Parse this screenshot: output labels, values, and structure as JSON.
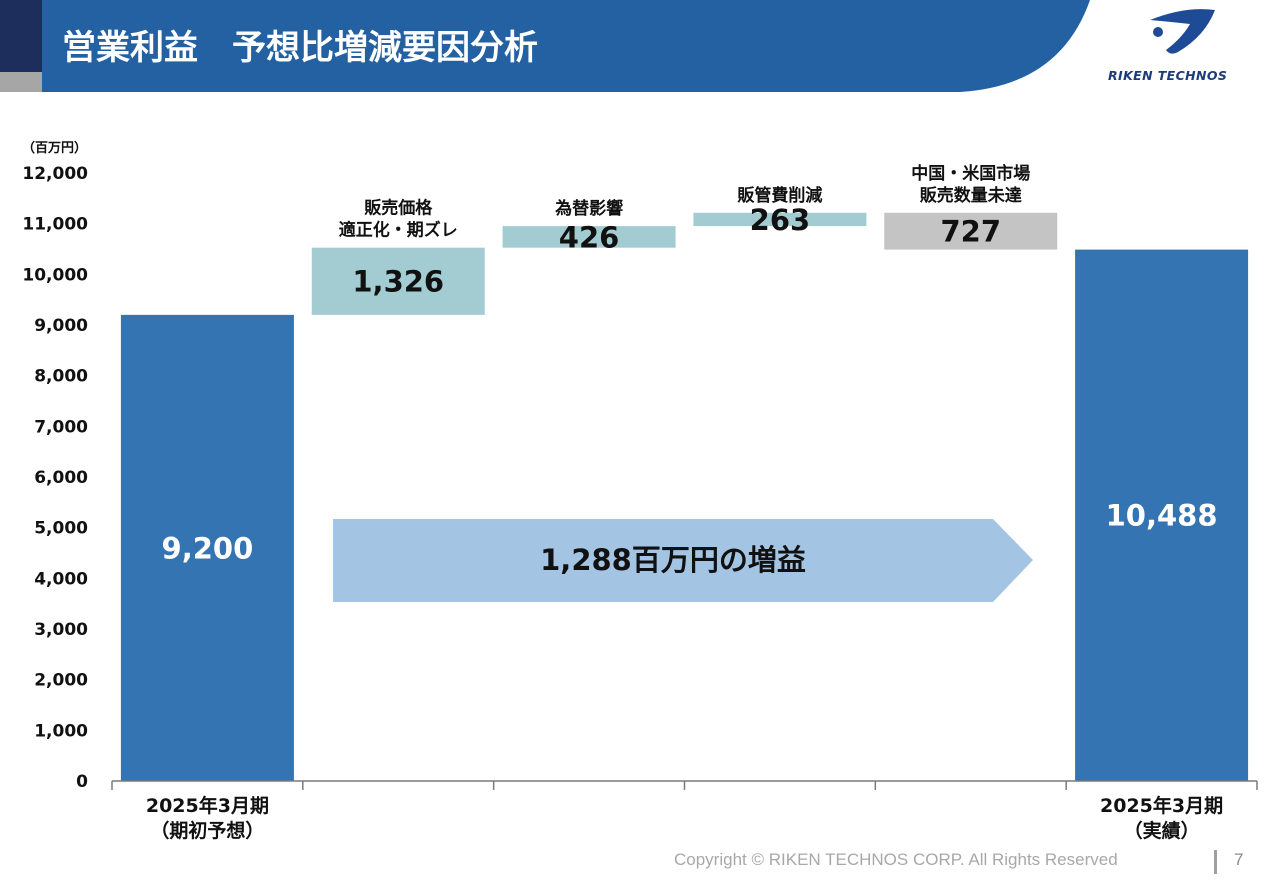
{
  "header": {
    "title": "営業利益　予想比増減要因分析",
    "logo_text": "RIKEN TECHNOS",
    "colors": {
      "band": "#2361a3",
      "band_dark": "#1d2d5c",
      "accent_gray": "#a6a6a6"
    }
  },
  "footer": {
    "copyright": "Copyright © RIKEN TECHNOS CORP. All Rights Reserved",
    "page_number": "7"
  },
  "chart_data": {
    "type": "bar",
    "subtype": "waterfall",
    "unit_label": "（百万円）",
    "ylim": [
      0,
      12000
    ],
    "yticks": [
      0,
      1000,
      2000,
      3000,
      4000,
      5000,
      6000,
      7000,
      8000,
      9000,
      10000,
      11000,
      12000
    ],
    "ytick_labels": [
      "0",
      "1,000",
      "2,000",
      "3,000",
      "4,000",
      "5,000",
      "6,000",
      "7,000",
      "8,000",
      "9,000",
      "10,000",
      "11,000",
      "12,000"
    ],
    "bars": [
      {
        "kind": "total",
        "base": 0,
        "top": 9200,
        "value_label": "9,200",
        "category": "",
        "category_lines": [
          "2025年3月期",
          "（期初予想）"
        ],
        "color": "#3474b2",
        "label_color": "#ffffff"
      },
      {
        "kind": "increase",
        "base": 9200,
        "top": 10526,
        "value_label": "1,326",
        "category": "販売価格適正化・期ズレ",
        "category_lines": [
          "販売価格",
          "適正化・期ズレ"
        ],
        "color": "#a3ccd2",
        "label_color": "#111111"
      },
      {
        "kind": "increase",
        "base": 10526,
        "top": 10952,
        "value_label": "426",
        "category": "為替影響",
        "category_lines": [
          "為替影響"
        ],
        "color": "#a3ccd2",
        "label_color": "#111111"
      },
      {
        "kind": "increase",
        "base": 10952,
        "top": 11215,
        "value_label": "263",
        "category": "販管費削減",
        "category_lines": [
          "販管費削減"
        ],
        "color": "#a3ccd2",
        "label_color": "#111111"
      },
      {
        "kind": "decrease",
        "base": 10488,
        "top": 11215,
        "value_label": "727",
        "category": "中国・米国市場販売数量未達",
        "category_lines": [
          "中国・米国市場",
          "販売数量未達"
        ],
        "color": "#c4c4c4",
        "label_color": "#111111"
      },
      {
        "kind": "total",
        "base": 0,
        "top": 10488,
        "value_label": "10,488",
        "category": "",
        "category_lines": [
          "2025年3月期",
          "（実績）"
        ],
        "color": "#3474b2",
        "label_color": "#ffffff"
      }
    ],
    "annotation": {
      "text": "1,288百万円の増益",
      "color": "#a3c4e2"
    }
  }
}
